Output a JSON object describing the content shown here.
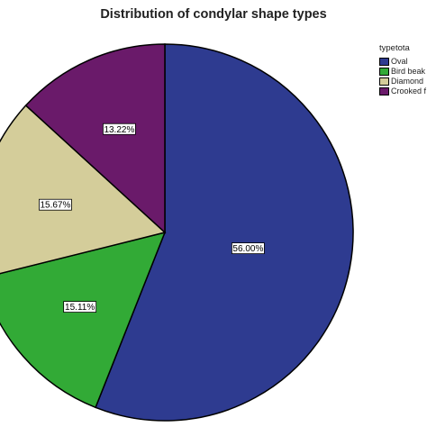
{
  "chart_data": {
    "type": "pie",
    "title": "Distribution of condylar shape  types",
    "legend_title": "typetota",
    "legend_position": "right",
    "categories": [
      "Oval",
      "Bird beak",
      "Diamond",
      "Crooked f"
    ],
    "values": [
      56.0,
      15.11,
      15.67,
      13.22
    ],
    "data_labels": [
      "56.00%",
      "15.11%",
      "15.67%",
      "13.22%"
    ],
    "colors": [
      "#2E3B90",
      "#32AA36",
      "#D4CD9A",
      "#6A1A6A"
    ]
  }
}
